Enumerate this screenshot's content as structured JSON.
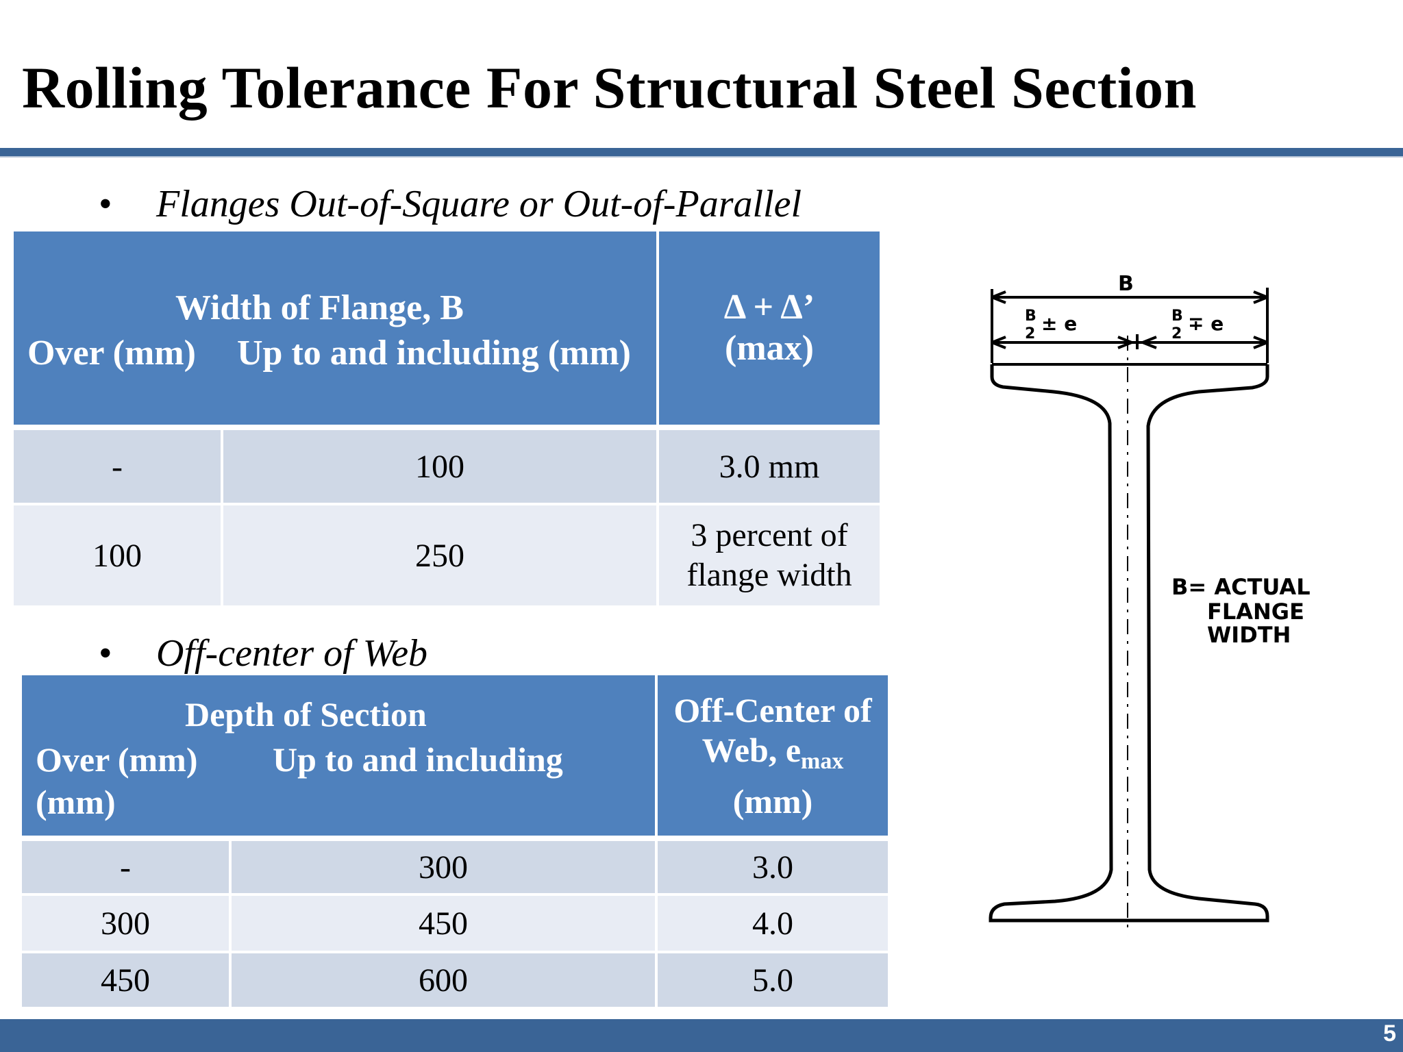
{
  "slide": {
    "title": "Rolling Tolerance For Structural Steel Section",
    "page_number": "5"
  },
  "section1": {
    "bullet": "Flanges Out-of-Square or Out-of-Parallel",
    "header_group": "Width of Flange, B",
    "col_over": "Over (mm)",
    "col_upto": "Up to and including (mm)",
    "col_delta": "Δ + Δ’",
    "col_delta_sub": "(max)",
    "rows": [
      {
        "over": "-",
        "upto": "100",
        "value": "3.0 mm"
      },
      {
        "over": "100",
        "upto": "250",
        "value_line1": "3 percent of",
        "value_line2": "flange width"
      }
    ]
  },
  "section2": {
    "bullet": "Off-center of Web",
    "header_group": "Depth of Section",
    "col_over": "Over (mm)",
    "col_over_unit": "(mm)",
    "col_upto": "Up to and including",
    "col_off_line1": "Off-Center of",
    "col_off_line2": "Web, e",
    "col_off_sub": "max",
    "col_off_line3": "(mm)",
    "rows": [
      {
        "over": "-",
        "upto": "300",
        "value": "3.0"
      },
      {
        "over": "300",
        "upto": "450",
        "value": "4.0"
      },
      {
        "over": "450",
        "upto": "600",
        "value": "5.0"
      }
    ]
  },
  "figure": {
    "label_b": "B",
    "label_left_num": "B",
    "label_left_den": "2",
    "label_left_op": "± e",
    "label_right_num": "B",
    "label_right_den": "2",
    "label_right_op": "∓ e",
    "caption_line1": "B= ACTUAL",
    "caption_line2": "FLANGE",
    "caption_line3": "WIDTH"
  }
}
